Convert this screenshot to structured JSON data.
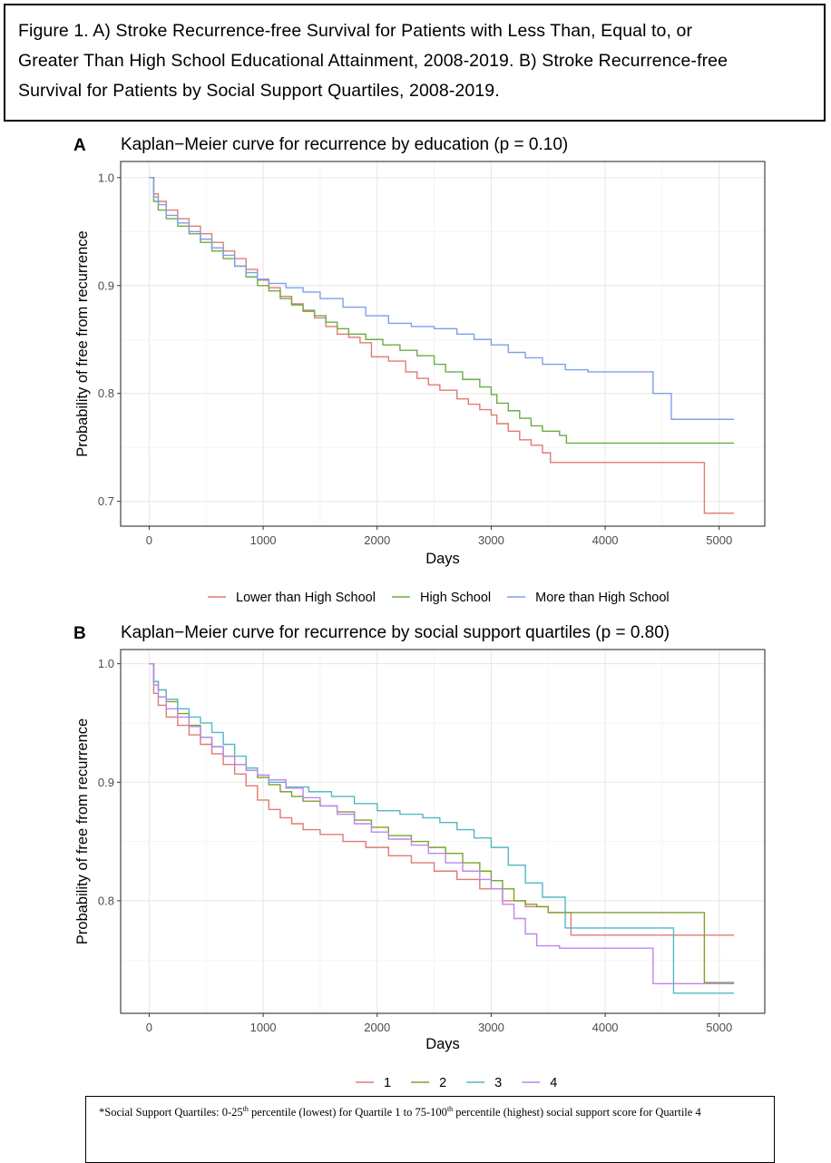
{
  "caption": {
    "line1": "Figure 1. A) Stroke Recurrence-free Survival for Patients with Less Than, Equal to, or",
    "line2": "Greater Than High School Educational Attainment, 2008-2019. B) Stroke Recurrence-free",
    "line3": "Survival for Patients by Social Support Quartiles, 2008-2019."
  },
  "footnote": {
    "star": "*",
    "part1": "Social Support Quartiles: 0-25",
    "sup1": "th",
    "part2": " percentile (lowest) for Quartile 1 to 75-100",
    "sup2": "th",
    "part3": " percentile (highest) social support score for Quartile 4"
  },
  "colors": {
    "red": "#E07B73",
    "green": "#6AAE44",
    "blue": "#7F9FEA",
    "olive": "#7AA32A",
    "teal": "#52B8C4",
    "purple": "#BE86EB"
  },
  "chart_data": [
    {
      "type": "line",
      "panel": "A",
      "title": "Kaplan−Meier curve for recurrence by education (p = 0.10)",
      "xlabel": "Days",
      "ylabel": "Probability of free from recurrence",
      "xlim": [
        -250,
        5400
      ],
      "ylim": [
        0.677,
        1.015
      ],
      "x_ticks": [
        0,
        1000,
        2000,
        3000,
        4000,
        5000
      ],
      "x_tick_labels": [
        "0",
        "1000",
        "2000",
        "3000",
        "4000",
        "5000"
      ],
      "y_ticks": [
        0.7,
        0.8,
        0.9,
        1.0
      ],
      "y_tick_labels": [
        "0.7",
        "0.8",
        "0.9",
        "1.0"
      ],
      "grid": true,
      "legend_position": "bottom",
      "series": [
        {
          "name": "Lower than High School",
          "color": "#E07B73",
          "x": [
            0,
            40,
            80,
            150,
            250,
            350,
            450,
            550,
            650,
            750,
            850,
            950,
            1050,
            1150,
            1250,
            1350,
            1450,
            1550,
            1650,
            1750,
            1850,
            1950,
            2100,
            2250,
            2350,
            2450,
            2550,
            2700,
            2800,
            2900,
            3000,
            3050,
            3150,
            3250,
            3350,
            3450,
            3520,
            3700,
            3900,
            4200,
            4500,
            4870,
            5130
          ],
          "y": [
            1.0,
            0.985,
            0.978,
            0.97,
            0.962,
            0.955,
            0.948,
            0.94,
            0.932,
            0.925,
            0.915,
            0.905,
            0.898,
            0.89,
            0.883,
            0.876,
            0.87,
            0.862,
            0.855,
            0.852,
            0.847,
            0.834,
            0.83,
            0.82,
            0.814,
            0.808,
            0.803,
            0.795,
            0.79,
            0.785,
            0.78,
            0.772,
            0.765,
            0.757,
            0.752,
            0.745,
            0.736,
            0.736,
            0.736,
            0.736,
            0.736,
            0.689,
            0.689
          ]
        },
        {
          "name": "High School",
          "color": "#6AAE44",
          "x": [
            0,
            40,
            80,
            150,
            250,
            350,
            450,
            550,
            650,
            750,
            850,
            950,
            1050,
            1150,
            1250,
            1350,
            1450,
            1550,
            1650,
            1750,
            1900,
            2050,
            2200,
            2350,
            2500,
            2600,
            2750,
            2900,
            3000,
            3050,
            3150,
            3250,
            3350,
            3450,
            3600,
            3660,
            4000,
            4500,
            5130
          ],
          "y": [
            1.0,
            0.978,
            0.97,
            0.962,
            0.955,
            0.948,
            0.94,
            0.932,
            0.925,
            0.918,
            0.908,
            0.9,
            0.895,
            0.888,
            0.882,
            0.877,
            0.872,
            0.866,
            0.86,
            0.855,
            0.85,
            0.845,
            0.84,
            0.835,
            0.827,
            0.82,
            0.813,
            0.806,
            0.799,
            0.791,
            0.784,
            0.777,
            0.77,
            0.765,
            0.761,
            0.754,
            0.754,
            0.754,
            0.754
          ]
        },
        {
          "name": "More than High School",
          "color": "#7F9FEA",
          "x": [
            0,
            40,
            80,
            150,
            250,
            350,
            450,
            550,
            650,
            750,
            850,
            950,
            1050,
            1200,
            1350,
            1500,
            1700,
            1900,
            2100,
            2300,
            2500,
            2700,
            2850,
            3000,
            3150,
            3300,
            3450,
            3650,
            3850,
            4100,
            4420,
            4580,
            4800,
            5130
          ],
          "y": [
            1.0,
            0.982,
            0.975,
            0.965,
            0.958,
            0.95,
            0.943,
            0.935,
            0.928,
            0.918,
            0.912,
            0.906,
            0.902,
            0.898,
            0.894,
            0.888,
            0.88,
            0.872,
            0.865,
            0.862,
            0.86,
            0.855,
            0.85,
            0.845,
            0.838,
            0.833,
            0.827,
            0.822,
            0.82,
            0.82,
            0.8,
            0.776,
            0.776,
            0.776
          ]
        }
      ]
    },
    {
      "type": "line",
      "panel": "B",
      "title": "Kaplan−Meier curve for recurrence by social support quartiles (p = 0.80)",
      "xlabel": "Days",
      "ylabel": "Probability of free from recurrence",
      "xlim": [
        -250,
        5400
      ],
      "ylim": [
        0.705,
        1.012
      ],
      "x_ticks": [
        0,
        1000,
        2000,
        3000,
        4000,
        5000
      ],
      "x_tick_labels": [
        "0",
        "1000",
        "2000",
        "3000",
        "4000",
        "5000"
      ],
      "y_ticks": [
        0.8,
        0.9,
        1.0
      ],
      "y_tick_labels": [
        "0.8",
        "0.9",
        "1.0"
      ],
      "grid": true,
      "legend_position": "bottom",
      "series": [
        {
          "name": "1",
          "color": "#E07B73",
          "x": [
            0,
            40,
            80,
            150,
            250,
            350,
            450,
            550,
            650,
            750,
            850,
            950,
            1050,
            1150,
            1250,
            1350,
            1500,
            1700,
            1900,
            2100,
            2300,
            2500,
            2700,
            2900,
            3100,
            3300,
            3500,
            3700,
            4000,
            4500,
            5130
          ],
          "y": [
            1.0,
            0.975,
            0.965,
            0.955,
            0.948,
            0.94,
            0.932,
            0.924,
            0.915,
            0.907,
            0.897,
            0.885,
            0.877,
            0.87,
            0.865,
            0.86,
            0.856,
            0.85,
            0.845,
            0.838,
            0.832,
            0.825,
            0.818,
            0.81,
            0.8,
            0.795,
            0.79,
            0.771,
            0.771,
            0.771,
            0.771
          ]
        },
        {
          "name": "2",
          "color": "#7AA32A",
          "x": [
            0,
            40,
            80,
            150,
            250,
            350,
            450,
            550,
            650,
            750,
            850,
            950,
            1050,
            1150,
            1250,
            1350,
            1500,
            1650,
            1800,
            1950,
            2100,
            2300,
            2450,
            2600,
            2750,
            2900,
            3000,
            3100,
            3200,
            3300,
            3400,
            3500,
            3700,
            4200,
            4870,
            5130
          ],
          "y": [
            1.0,
            0.985,
            0.978,
            0.968,
            0.958,
            0.948,
            0.938,
            0.93,
            0.922,
            0.915,
            0.91,
            0.904,
            0.898,
            0.892,
            0.888,
            0.884,
            0.88,
            0.875,
            0.868,
            0.862,
            0.855,
            0.85,
            0.845,
            0.84,
            0.832,
            0.825,
            0.817,
            0.81,
            0.8,
            0.797,
            0.795,
            0.79,
            0.79,
            0.79,
            0.731,
            0.731
          ]
        },
        {
          "name": "3",
          "color": "#52B8C4",
          "x": [
            0,
            40,
            80,
            150,
            250,
            350,
            450,
            550,
            650,
            750,
            850,
            950,
            1050,
            1200,
            1400,
            1600,
            1800,
            2000,
            2200,
            2400,
            2550,
            2700,
            2850,
            3000,
            3150,
            3300,
            3450,
            3650,
            3800,
            4200,
            4600,
            4800,
            5130
          ],
          "y": [
            1.0,
            0.985,
            0.978,
            0.97,
            0.962,
            0.955,
            0.95,
            0.942,
            0.932,
            0.922,
            0.912,
            0.906,
            0.9,
            0.896,
            0.892,
            0.888,
            0.882,
            0.876,
            0.873,
            0.87,
            0.866,
            0.86,
            0.853,
            0.845,
            0.83,
            0.815,
            0.803,
            0.777,
            0.777,
            0.777,
            0.722,
            0.722,
            0.722
          ]
        },
        {
          "name": "4",
          "color": "#BE86EB",
          "x": [
            0,
            40,
            80,
            150,
            250,
            350,
            450,
            550,
            650,
            750,
            850,
            950,
            1050,
            1200,
            1350,
            1500,
            1650,
            1800,
            1950,
            2100,
            2300,
            2450,
            2600,
            2750,
            2900,
            3000,
            3100,
            3200,
            3300,
            3400,
            3600,
            4000,
            4420,
            4800,
            5130
          ],
          "y": [
            1.0,
            0.982,
            0.972,
            0.962,
            0.955,
            0.947,
            0.938,
            0.93,
            0.922,
            0.915,
            0.91,
            0.906,
            0.902,
            0.895,
            0.887,
            0.88,
            0.873,
            0.865,
            0.858,
            0.852,
            0.847,
            0.84,
            0.832,
            0.825,
            0.818,
            0.81,
            0.797,
            0.785,
            0.772,
            0.762,
            0.76,
            0.76,
            0.73,
            0.73,
            0.73
          ]
        }
      ]
    }
  ]
}
